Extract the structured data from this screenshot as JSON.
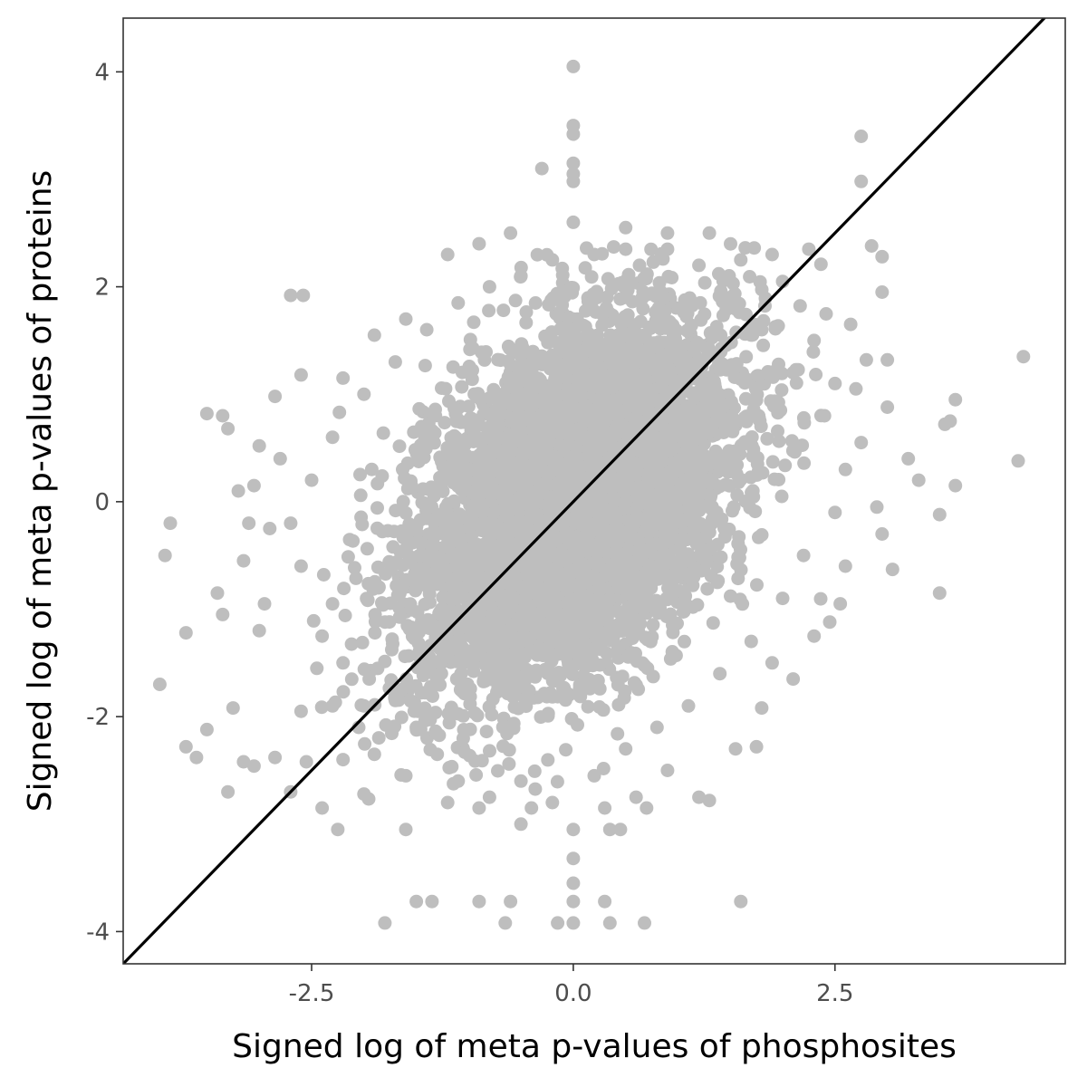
{
  "chart_data": {
    "type": "scatter",
    "xlabel": "Signed log of meta p-values of phosphosites",
    "ylabel": "Signed log of meta p-values of proteins",
    "xlim": [
      -4.3,
      4.7
    ],
    "ylim": [
      -4.3,
      4.5
    ],
    "x_ticks": [
      {
        "value": -2.5,
        "label": "-2.5"
      },
      {
        "value": 0.0,
        "label": "0.0"
      },
      {
        "value": 2.5,
        "label": "2.5"
      }
    ],
    "y_ticks": [
      {
        "value": -4,
        "label": "-4"
      },
      {
        "value": -2,
        "label": "-2"
      },
      {
        "value": 0,
        "label": "0"
      },
      {
        "value": 2,
        "label": "2"
      },
      {
        "value": 4,
        "label": "4"
      }
    ],
    "grid": false,
    "point_color": "#bebebe",
    "reference_line": {
      "type": "identity",
      "slope": 1,
      "intercept": 0,
      "color": "#000000"
    },
    "series": [
      {
        "points": [
          [
            0.0,
            4.05
          ],
          [
            0.0,
            3.5
          ],
          [
            0.0,
            3.42
          ],
          [
            0.0,
            3.15
          ],
          [
            0.0,
            3.05
          ],
          [
            0.0,
            2.98
          ],
          [
            -0.3,
            3.1
          ],
          [
            0.0,
            2.6
          ],
          [
            -3.9,
            -0.5
          ],
          [
            -3.85,
            -0.2
          ],
          [
            -3.95,
            -1.7
          ],
          [
            -3.7,
            -2.28
          ],
          [
            -3.6,
            -2.38
          ],
          [
            -3.5,
            -2.12
          ],
          [
            -3.7,
            -1.22
          ],
          [
            -3.5,
            0.82
          ],
          [
            -3.35,
            0.8
          ],
          [
            -3.3,
            -2.7
          ],
          [
            -3.25,
            -1.92
          ],
          [
            -3.15,
            -2.42
          ],
          [
            -3.05,
            -2.46
          ],
          [
            -2.85,
            -2.38
          ],
          [
            -2.7,
            -2.7
          ],
          [
            -2.55,
            -2.42
          ],
          [
            -2.7,
            1.92
          ],
          [
            -2.58,
            1.92
          ],
          [
            -2.6,
            1.18
          ],
          [
            -2.85,
            0.98
          ],
          [
            -3.3,
            0.68
          ],
          [
            -3.0,
            0.52
          ],
          [
            -2.4,
            -2.85
          ],
          [
            -2.25,
            -3.05
          ],
          [
            -2.0,
            -2.72
          ],
          [
            -1.8,
            -3.92
          ],
          [
            -1.5,
            -3.72
          ],
          [
            -1.35,
            -3.72
          ],
          [
            -0.9,
            -3.72
          ],
          [
            -0.6,
            -3.72
          ],
          [
            -0.65,
            -3.92
          ],
          [
            -0.15,
            -3.92
          ],
          [
            0.0,
            -3.92
          ],
          [
            0.35,
            -3.92
          ],
          [
            0.68,
            -3.92
          ],
          [
            0.0,
            -3.72
          ],
          [
            0.3,
            -3.72
          ],
          [
            0.0,
            -3.55
          ],
          [
            0.0,
            -3.32
          ],
          [
            1.6,
            -3.72
          ],
          [
            0.0,
            -3.05
          ],
          [
            0.35,
            -3.05
          ],
          [
            0.45,
            -3.05
          ],
          [
            -1.6,
            -3.05
          ],
          [
            1.3,
            -2.78
          ],
          [
            1.8,
            -1.92
          ],
          [
            1.75,
            -2.28
          ],
          [
            1.55,
            -2.3
          ],
          [
            2.75,
            3.4
          ],
          [
            2.75,
            2.98
          ],
          [
            2.95,
            2.28
          ],
          [
            2.85,
            2.38
          ],
          [
            2.95,
            1.95
          ],
          [
            2.65,
            1.65
          ],
          [
            2.25,
            2.35
          ],
          [
            2.0,
            2.05
          ],
          [
            4.3,
            1.35
          ],
          [
            4.25,
            0.38
          ],
          [
            3.65,
            0.95
          ],
          [
            3.6,
            0.75
          ],
          [
            3.55,
            0.72
          ],
          [
            3.65,
            0.15
          ],
          [
            3.5,
            -0.12
          ],
          [
            3.5,
            -0.85
          ],
          [
            3.05,
            -0.63
          ],
          [
            2.55,
            -0.95
          ],
          [
            2.45,
            -1.12
          ],
          [
            2.3,
            -1.25
          ],
          [
            3.0,
            0.88
          ],
          [
            2.8,
            1.32
          ],
          [
            3.0,
            1.32
          ],
          [
            2.7,
            1.05
          ],
          [
            -2.0,
            -1.9
          ],
          [
            -2.3,
            -1.9
          ],
          [
            -2.6,
            -1.95
          ],
          [
            -2.4,
            -1.25
          ],
          [
            -3.0,
            -1.2
          ],
          [
            -3.35,
            -1.05
          ],
          [
            -3.4,
            -0.85
          ],
          [
            -3.1,
            -0.2
          ],
          [
            -3.2,
            0.1
          ],
          [
            -3.05,
            0.15
          ],
          [
            -2.9,
            -0.25
          ],
          [
            -2.6,
            -0.6
          ],
          [
            -2.3,
            -0.95
          ],
          [
            -2.2,
            -1.5
          ],
          [
            -1.95,
            -1.65
          ],
          [
            -1.7,
            -1.85
          ],
          [
            -1.5,
            -2.1
          ],
          [
            -1.3,
            -2.35
          ],
          [
            -1.1,
            -2.6
          ],
          [
            -0.8,
            -2.75
          ],
          [
            -0.5,
            -2.6
          ],
          [
            -0.2,
            -2.8
          ],
          [
            0.2,
            -2.55
          ],
          [
            0.5,
            -2.3
          ],
          [
            0.8,
            -2.1
          ],
          [
            1.1,
            -1.9
          ],
          [
            1.4,
            -1.6
          ],
          [
            1.7,
            -1.3
          ],
          [
            2.0,
            -0.9
          ],
          [
            2.2,
            -0.5
          ],
          [
            2.5,
            -0.1
          ],
          [
            2.6,
            0.3
          ],
          [
            2.4,
            0.8
          ],
          [
            2.1,
            1.2
          ],
          [
            1.8,
            1.6
          ],
          [
            1.5,
            1.9
          ],
          [
            1.2,
            2.2
          ],
          [
            0.9,
            2.35
          ],
          [
            0.5,
            2.35
          ],
          [
            0.2,
            2.3
          ],
          [
            -0.2,
            2.25
          ],
          [
            -0.5,
            2.1
          ],
          [
            -0.8,
            2.0
          ],
          [
            -1.1,
            1.85
          ],
          [
            -1.4,
            1.6
          ],
          [
            -1.7,
            1.3
          ],
          [
            -2.0,
            1.0
          ],
          [
            -2.3,
            0.6
          ],
          [
            -2.5,
            0.2
          ],
          [
            -2.7,
            -0.2
          ],
          [
            -1.2,
            2.3
          ],
          [
            -0.9,
            2.4
          ],
          [
            -0.6,
            2.5
          ],
          [
            0.5,
            2.55
          ],
          [
            0.9,
            2.5
          ],
          [
            1.3,
            2.5
          ],
          [
            1.9,
            2.3
          ],
          [
            1.6,
            2.25
          ],
          [
            -1.9,
            1.55
          ],
          [
            -1.6,
            1.7
          ],
          [
            -2.2,
            1.15
          ],
          [
            -2.8,
            0.4
          ],
          [
            -3.15,
            -0.55
          ],
          [
            -2.95,
            -0.95
          ],
          [
            1.2,
            -2.75
          ],
          [
            0.9,
            -2.5
          ],
          [
            0.6,
            -2.75
          ],
          [
            0.3,
            -2.85
          ],
          [
            -0.4,
            -2.85
          ],
          [
            -0.9,
            -2.85
          ],
          [
            -1.2,
            -2.8
          ],
          [
            -1.6,
            -2.55
          ],
          [
            -1.9,
            -2.35
          ],
          [
            -2.05,
            -2.1
          ],
          [
            2.1,
            -1.65
          ],
          [
            1.9,
            -1.5
          ],
          [
            2.6,
            -0.6
          ],
          [
            2.75,
            0.55
          ],
          [
            2.9,
            -0.05
          ],
          [
            3.2,
            0.4
          ],
          [
            3.3,
            0.2
          ],
          [
            2.95,
            -0.3
          ],
          [
            -0.5,
            -3.0
          ],
          [
            0.7,
            -2.85
          ],
          [
            -2.2,
            -2.4
          ],
          [
            2.3,
            1.5
          ],
          [
            2.5,
            1.1
          ],
          [
            -2.45,
            -1.55
          ]
        ]
      }
    ],
    "dense_core": {
      "points": 6000,
      "x_sd": 0.75,
      "y_sd": 0.85,
      "correlation": 0.42,
      "x_clip": [
        -2.6,
        2.6
      ],
      "y_clip": [
        -2.85,
        2.4
      ]
    }
  }
}
